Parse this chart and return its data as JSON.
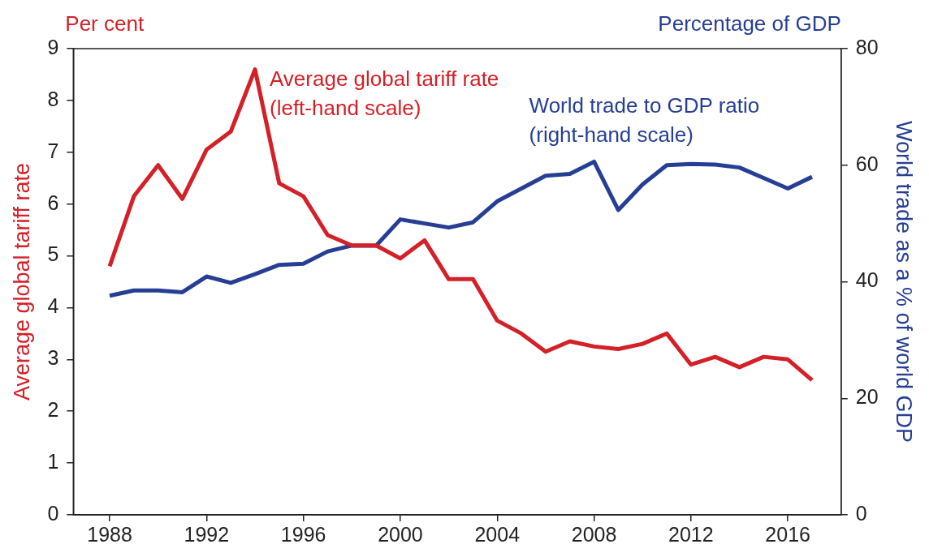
{
  "chart_data": {
    "type": "line",
    "ylabel": "Average global tariff rate",
    "y2label": "World trade as a % of world GDP",
    "annotations": [
      "Per cent",
      "Percentage of GDP"
    ],
    "x": [
      1988,
      1989,
      1990,
      1991,
      1992,
      1993,
      1994,
      1995,
      1996,
      1997,
      1998,
      1999,
      2000,
      2001,
      2002,
      2003,
      2004,
      2005,
      2006,
      2007,
      2008,
      2009,
      2010,
      2011,
      2012,
      2013,
      2014,
      2015,
      2016,
      2017
    ],
    "series": [
      {
        "name": "Average global tariff rate\n(left-hand scale)",
        "color": "#d42027",
        "values": [
          4.8,
          6.15,
          6.75,
          6.1,
          7.05,
          7.4,
          8.6,
          6.4,
          6.15,
          5.4,
          5.2,
          5.2,
          4.95,
          5.3,
          4.55,
          4.55,
          3.75,
          3.5,
          3.15,
          3.35,
          3.25,
          3.2,
          3.3,
          3.5,
          2.9,
          3.05,
          2.85,
          3.05,
          3.0,
          2.6
        ]
      },
      {
        "name": "World trade to GDP ratio\n(right-hand scale)",
        "color": "#263f95",
        "axis": "y2",
        "values": [
          37.6,
          38.5,
          38.5,
          38.2,
          40.9,
          39.8,
          41.3,
          42.9,
          43.1,
          45.2,
          46.2,
          46.2,
          50.7,
          50.0,
          49.3,
          50.2,
          53.8,
          56.0,
          58.2,
          58.5,
          60.6,
          52.3,
          56.7,
          60.0,
          60.2,
          60.1,
          59.6,
          57.8,
          56.0,
          58.0
        ]
      }
    ],
    "xlim": [
      1986.5,
      2018.2
    ],
    "xticks": [
      1988,
      1992,
      1996,
      2000,
      2004,
      2008,
      2012,
      2016
    ],
    "ylim": [
      0,
      9
    ],
    "yticks": [
      0,
      1,
      2,
      3,
      4,
      5,
      6,
      7,
      8,
      9
    ],
    "y2lim": [
      0,
      80
    ],
    "y2ticks": [
      0,
      20,
      40,
      60,
      80
    ],
    "grid": false,
    "legend": false,
    "marker": "none",
    "line_style": "solid"
  }
}
